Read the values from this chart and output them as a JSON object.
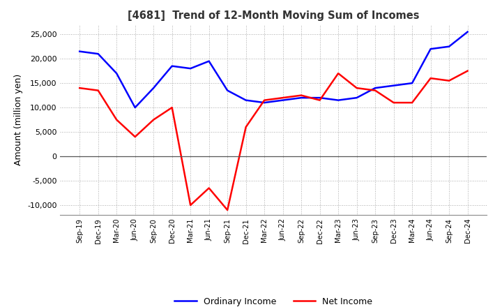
{
  "title": "[4681]  Trend of 12-Month Moving Sum of Incomes",
  "ylabel": "Amount (million yen)",
  "ylim": [
    -12000,
    27000
  ],
  "yticks": [
    -10000,
    -5000,
    0,
    5000,
    10000,
    15000,
    20000,
    25000
  ],
  "background_color": "#ffffff",
  "grid_color": "#aaaaaa",
  "x_labels": [
    "Sep-19",
    "Dec-19",
    "Mar-20",
    "Jun-20",
    "Sep-20",
    "Dec-20",
    "Mar-21",
    "Jun-21",
    "Sep-21",
    "Dec-21",
    "Mar-22",
    "Jun-22",
    "Sep-22",
    "Dec-22",
    "Mar-23",
    "Jun-23",
    "Sep-23",
    "Dec-23",
    "Mar-24",
    "Jun-24",
    "Sep-24",
    "Dec-24"
  ],
  "ordinary_income": [
    21500,
    21000,
    17000,
    10000,
    14000,
    18500,
    18000,
    19500,
    13500,
    11500,
    11000,
    11500,
    12000,
    12000,
    11500,
    12000,
    14000,
    14500,
    15000,
    22000,
    22500,
    25500
  ],
  "net_income": [
    14000,
    13500,
    7500,
    4000,
    7500,
    10000,
    -10000,
    -6500,
    -11000,
    6000,
    11500,
    12000,
    12500,
    11500,
    17000,
    14000,
    13500,
    11000,
    11000,
    16000,
    15500,
    17500
  ],
  "ordinary_color": "#0000ff",
  "net_color": "#ff0000",
  "line_width": 1.8
}
